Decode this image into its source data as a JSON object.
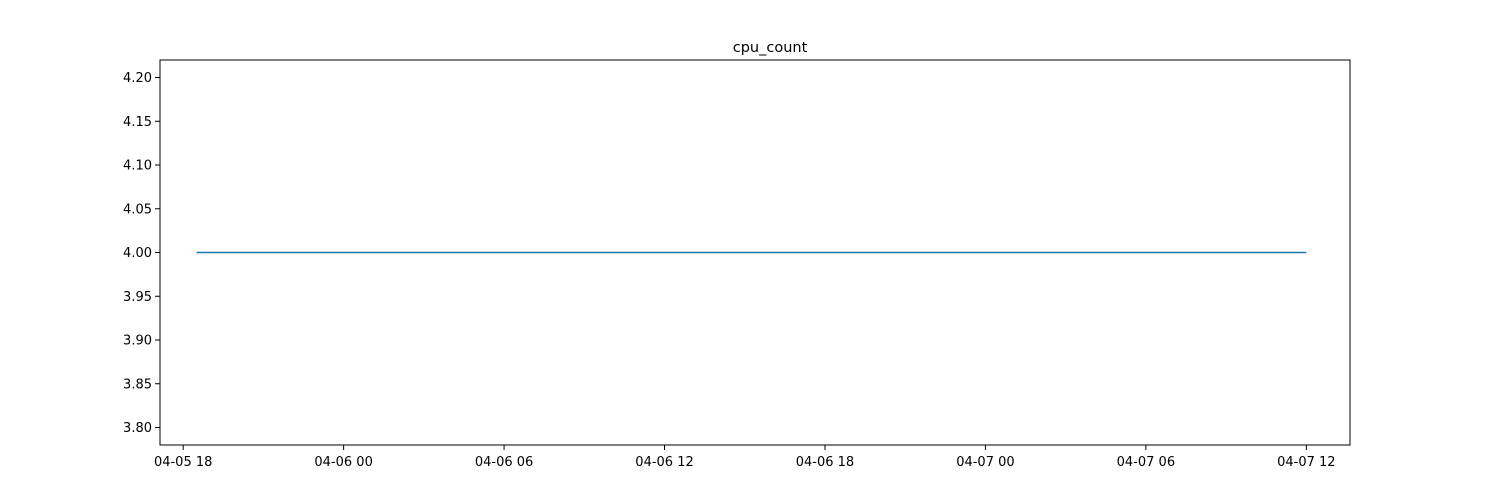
{
  "chart_data": {
    "type": "line",
    "title": "cpu_count",
    "xlabel": "",
    "ylabel": "",
    "x_ticks": [
      "04-05 18",
      "04-06 00",
      "04-06 06",
      "04-06 12",
      "04-06 18",
      "04-07 00",
      "04-07 06",
      "04-07 12"
    ],
    "y_ticks": [
      "3.80",
      "3.85",
      "3.90",
      "3.95",
      "4.00",
      "4.05",
      "4.10",
      "4.15",
      "4.20"
    ],
    "ylim": [
      3.78,
      4.22
    ],
    "xlim": [
      "2025-04-05 17:08",
      "2025-04-07 13:38"
    ],
    "grid": false,
    "series": [
      {
        "color": "#1f77b4",
        "x": [
          "2025-04-05 18:30",
          "2025-04-07 12:00"
        ],
        "values": [
          4.0,
          4.0
        ]
      }
    ]
  }
}
